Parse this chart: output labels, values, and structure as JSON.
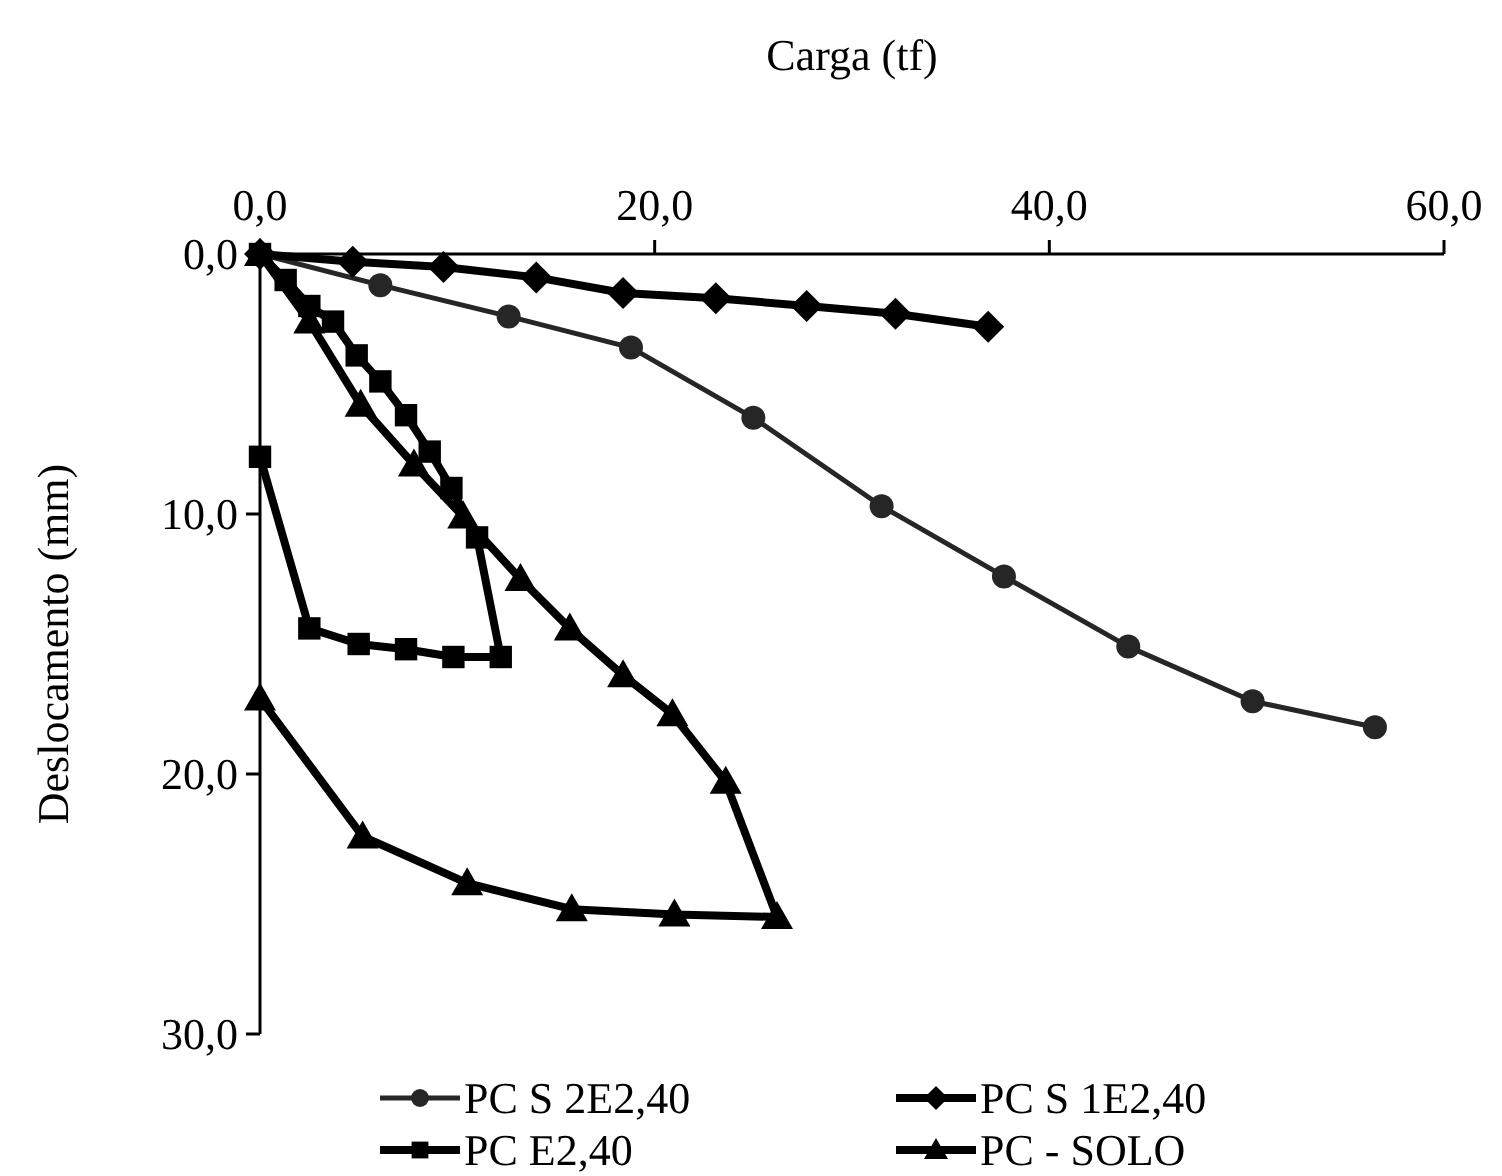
{
  "chart_data": {
    "type": "line",
    "xlabel": "Carga (tf)",
    "ylabel": "Deslocamento (mm)",
    "xlim": [
      0,
      60
    ],
    "xticks": [
      {
        "value": 0,
        "label": "0,0"
      },
      {
        "value": 20,
        "label": "20,0"
      },
      {
        "value": 40,
        "label": "40,0"
      },
      {
        "value": 60,
        "label": "60,0"
      }
    ],
    "ylim": [
      30,
      0
    ],
    "yticks": [
      {
        "value": 0,
        "label": "0,0"
      },
      {
        "value": 10,
        "label": "10,0"
      },
      {
        "value": 20,
        "label": "20,0"
      },
      {
        "value": 30,
        "label": "30,0"
      }
    ],
    "grid": false,
    "legend": "bottom",
    "line_style": "solid",
    "series": [
      {
        "name": "PC S 2E2,40",
        "color": "#262626",
        "marker": "circle",
        "x": [
          0,
          6.1,
          12.6,
          18.8,
          25.0,
          31.5,
          37.7,
          44.0,
          50.3,
          56.5
        ],
        "values": [
          0,
          1.2,
          2.4,
          3.6,
          6.3,
          9.7,
          12.4,
          15.1,
          17.2,
          18.2
        ]
      },
      {
        "name": "PC S 1E2,40",
        "color": "#000000",
        "marker": "diamond",
        "x": [
          0,
          4.7,
          9.3,
          14.0,
          18.4,
          23.1,
          27.7,
          32.2,
          36.9
        ],
        "values": [
          0,
          0.3,
          0.5,
          0.9,
          1.5,
          1.7,
          2.0,
          2.3,
          2.8
        ]
      },
      {
        "name": "PC E2,40",
        "color": "#000000",
        "marker": "square",
        "x": [
          0,
          1.3,
          2.5,
          3.7,
          4.9,
          6.1,
          7.4,
          8.6,
          9.7,
          11.0,
          12.2,
          9.8,
          7.4,
          5.0,
          2.5,
          0.0
        ],
        "values": [
          0,
          1.0,
          2.0,
          2.6,
          3.9,
          4.9,
          6.2,
          7.6,
          9.0,
          10.9,
          15.5,
          15.5,
          15.2,
          15.0,
          14.4,
          7.8
        ]
      },
      {
        "name": "PC - SOLO",
        "color": "#000000",
        "marker": "triangle",
        "x": [
          0,
          2.5,
          5.1,
          7.8,
          10.3,
          13.2,
          15.7,
          18.4,
          20.9,
          23.6,
          26.2,
          21.0,
          15.8,
          10.5,
          5.2,
          0.0
        ],
        "values": [
          0,
          2.6,
          5.8,
          8.1,
          10.1,
          12.5,
          14.4,
          16.2,
          17.7,
          20.3,
          25.5,
          25.4,
          25.2,
          24.2,
          22.4,
          17.1
        ]
      }
    ]
  }
}
